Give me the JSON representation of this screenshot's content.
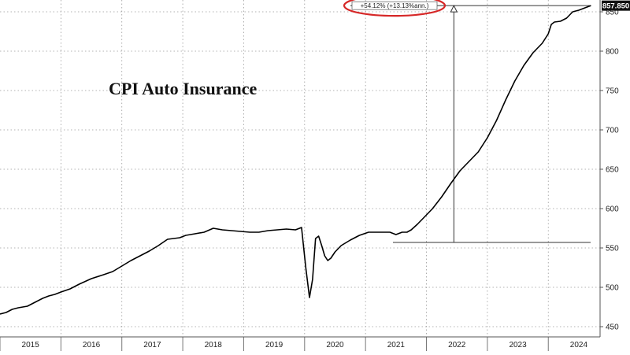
{
  "chart_data": {
    "type": "line",
    "title": "CPI Auto Insurance",
    "xlabel": "",
    "ylabel": "",
    "xlim": [
      2015.0,
      2024.85
    ],
    "ylim": [
      437,
      865
    ],
    "x_ticks": [
      2015,
      2016,
      2017,
      2018,
      2019,
      2020,
      2021,
      2022,
      2023,
      2024
    ],
    "y_ticks": [
      450,
      500,
      550,
      600,
      650,
      700,
      750,
      800,
      850
    ],
    "grid": true,
    "last_value_label": "857.850",
    "annotation": {
      "text": "+54.12% (+13.13%ann.)",
      "from_x": 2021.45,
      "from_y": 557,
      "to_x": 2024.7,
      "to_y": 857.85,
      "arrow_x": 2022.45
    },
    "series": [
      {
        "name": "",
        "color": "#000000",
        "x": [
          2015.0,
          2015.1,
          2015.2,
          2015.3,
          2015.45,
          2015.6,
          2015.7,
          2015.8,
          2015.9,
          2016.0,
          2016.15,
          2016.3,
          2016.5,
          2016.7,
          2016.85,
          2017.0,
          2017.15,
          2017.3,
          2017.45,
          2017.6,
          2017.75,
          2017.85,
          2017.95,
          2018.05,
          2018.2,
          2018.35,
          2018.5,
          2018.65,
          2018.8,
          2018.95,
          2019.1,
          2019.25,
          2019.4,
          2019.55,
          2019.7,
          2019.85,
          2019.95,
          2020.02,
          2020.08,
          2020.13,
          2020.18,
          2020.23,
          2020.28,
          2020.33,
          2020.38,
          2020.43,
          2020.5,
          2020.6,
          2020.75,
          2020.9,
          2021.05,
          2021.2,
          2021.3,
          2021.4,
          2021.5,
          2021.6,
          2021.68,
          2021.75,
          2021.85,
          2021.95,
          2022.1,
          2022.25,
          2022.4,
          2022.55,
          2022.7,
          2022.85,
          2023.0,
          2023.15,
          2023.3,
          2023.45,
          2023.6,
          2023.75,
          2023.9,
          2024.0,
          2024.05,
          2024.1,
          2024.2,
          2024.3,
          2024.4,
          2024.5,
          2024.6,
          2024.7
        ],
        "y": [
          466,
          468,
          472,
          474,
          476,
          482,
          486,
          489,
          491,
          494,
          498,
          504,
          511,
          516,
          520,
          527,
          534,
          540,
          546,
          553,
          561,
          562,
          563,
          566,
          568,
          570,
          575,
          573,
          572,
          571,
          570,
          570,
          572,
          573,
          574,
          573,
          576,
          525,
          487,
          510,
          562,
          565,
          553,
          540,
          534,
          537,
          545,
          553,
          560,
          566,
          570,
          570,
          570,
          570,
          567,
          570,
          570,
          573,
          580,
          588,
          600,
          615,
          632,
          648,
          660,
          672,
          690,
          712,
          738,
          762,
          782,
          798,
          810,
          822,
          834,
          837,
          838,
          842,
          850,
          852,
          855,
          857.85
        ]
      }
    ]
  }
}
